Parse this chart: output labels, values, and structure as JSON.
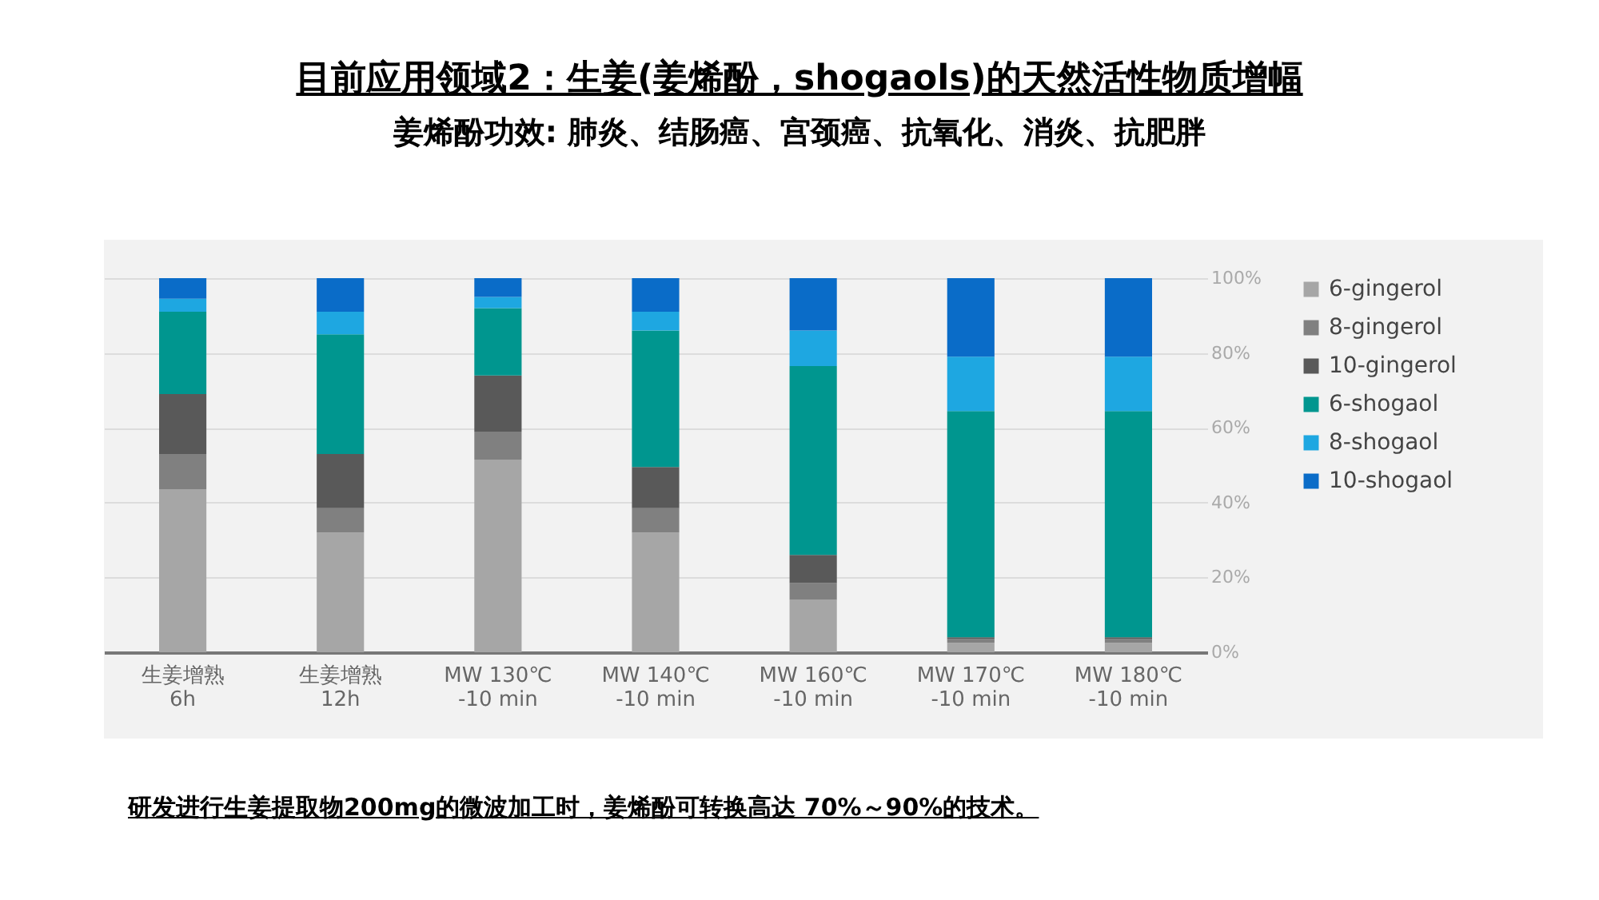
{
  "chart_data": {
    "type": "bar",
    "title": "目前应用领域2：生姜(姜烯酚，shogaols)的天然活性物质增幅",
    "subtitle": "姜烯酚功效: 肺炎、结肠癌、宫颈癌、抗氧化、消炎、抗肥胖",
    "annotations": [
      "研发进行生姜提取物200mg的微波加工时，姜烯酚可转换高达 70%～90%的技术。"
    ],
    "categories": [
      "生姜增熟\n6h",
      "生姜增熟\n12h",
      "MW 130℃\n-10 min",
      "MW 140℃\n-10 min",
      "MW 160℃\n-10 min",
      "MW 170℃\n-10 min",
      "MW 180℃\n-10 min"
    ],
    "stacked": true,
    "series": [
      {
        "name": "6-gingerol",
        "color": "#a6a6a6",
        "values": [
          43.5,
          32,
          51.5,
          32,
          14,
          2.5,
          2.5
        ]
      },
      {
        "name": "8-gingerol",
        "color": "#808080",
        "values": [
          9.5,
          6.5,
          7.5,
          6.5,
          4.5,
          1,
          1
        ]
      },
      {
        "name": "10-gingerol",
        "color": "#595959",
        "values": [
          16,
          14.5,
          15,
          11,
          7.5,
          0.5,
          0.5
        ]
      },
      {
        "name": "6-shogaol",
        "color": "#00968f",
        "values": [
          22,
          32,
          18,
          36.5,
          50.5,
          60.5,
          60.5
        ]
      },
      {
        "name": "8-shogaol",
        "color": "#1ea7e1",
        "values": [
          3.5,
          6,
          3,
          5,
          9.5,
          14.5,
          14.5
        ]
      },
      {
        "name": "10-shogaol",
        "color": "#0a6cc8",
        "values": [
          5.5,
          9,
          5,
          9,
          14,
          21,
          21
        ]
      }
    ],
    "ylim": [
      0,
      100
    ],
    "yticks": [
      {
        "value": 0,
        "label": "0%"
      },
      {
        "value": 20,
        "label": "20%"
      },
      {
        "value": 40,
        "label": "40%"
      },
      {
        "value": 60,
        "label": "60%"
      },
      {
        "value": 80,
        "label": "80%"
      },
      {
        "value": 100,
        "label": "100%"
      }
    ],
    "grid": "y",
    "legend": "right"
  }
}
